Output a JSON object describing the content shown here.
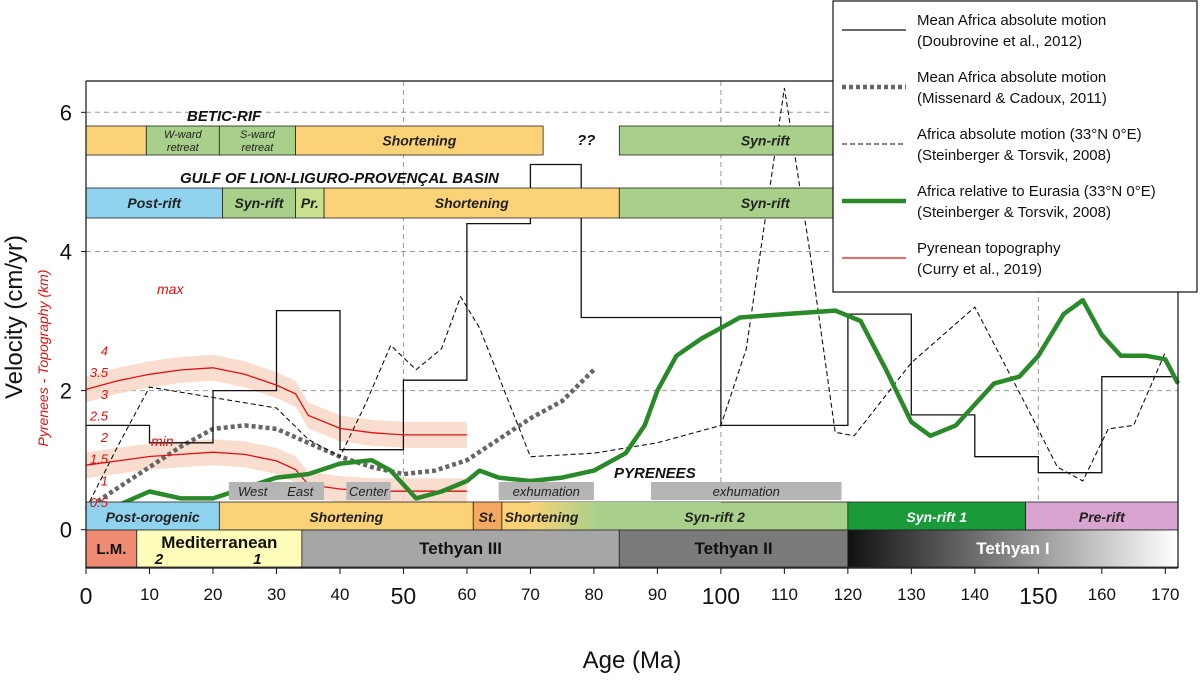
{
  "chart_data": {
    "type": "line",
    "xlabel": "Age (Ma)",
    "ylabel": "Velocity (cm/yr)",
    "ylabel2": "Pyrenees - Topography (km)",
    "xlim": [
      0,
      172
    ],
    "ylim": [
      -0.55,
      6.45
    ],
    "x_ticks": [
      0,
      10,
      20,
      30,
      40,
      50,
      60,
      70,
      80,
      90,
      100,
      110,
      120,
      130,
      140,
      150,
      160,
      170
    ],
    "y_ticks": [
      0,
      2,
      4,
      6
    ],
    "topo_ticks": [
      "0.5",
      "1",
      "1.5",
      "2",
      "2.5",
      "3",
      "3.5",
      "4"
    ],
    "grid_x": [
      50,
      100,
      150
    ],
    "grid_y": [
      2,
      4,
      6
    ],
    "annotations": {
      "max": "max",
      "min": "min",
      "question": "??",
      "betic_rif": "BETIC-RIF",
      "gulf": "GULF OF LION-LIGURO-PROVENÇAL BASIN",
      "pyrenees": "PYRENEES"
    },
    "series": [
      {
        "name": "Mean Africa absolute motion",
        "citation": "(Doubrovine et al., 2012)",
        "color": "#111111",
        "style": "step",
        "points": [
          [
            0,
            1.5
          ],
          [
            10,
            1.5
          ],
          [
            10,
            1.25
          ],
          [
            20,
            1.25
          ],
          [
            20,
            2.0
          ],
          [
            30,
            2.0
          ],
          [
            30,
            3.15
          ],
          [
            40,
            3.15
          ],
          [
            40,
            1.15
          ],
          [
            50,
            1.15
          ],
          [
            50,
            2.15
          ],
          [
            60,
            2.15
          ],
          [
            60,
            4.4
          ],
          [
            70,
            4.4
          ],
          [
            70,
            5.25
          ],
          [
            78,
            5.25
          ],
          [
            78,
            3.05
          ],
          [
            100,
            3.05
          ],
          [
            100,
            1.5
          ],
          [
            120,
            1.5
          ],
          [
            120,
            3.1
          ],
          [
            130,
            3.1
          ],
          [
            130,
            1.65
          ],
          [
            140,
            1.65
          ],
          [
            140,
            1.05
          ],
          [
            150,
            1.05
          ],
          [
            150,
            0.82
          ],
          [
            160,
            0.82
          ],
          [
            160,
            2.2
          ],
          [
            171,
            2.2
          ]
        ]
      },
      {
        "name": "Mean Africa absolute motion",
        "citation": "(Missenard & Cadoux, 2011)",
        "color": "#666666",
        "style": "dotted-thick",
        "points": [
          [
            0,
            0.3
          ],
          [
            5,
            0.6
          ],
          [
            10,
            0.9
          ],
          [
            15,
            1.2
          ],
          [
            20,
            1.45
          ],
          [
            25,
            1.5
          ],
          [
            30,
            1.45
          ],
          [
            35,
            1.25
          ],
          [
            40,
            1.05
          ],
          [
            45,
            0.9
          ],
          [
            50,
            0.8
          ],
          [
            55,
            0.85
          ],
          [
            60,
            1.0
          ],
          [
            65,
            1.3
          ],
          [
            70,
            1.6
          ],
          [
            75,
            1.85
          ],
          [
            80,
            2.3
          ]
        ]
      },
      {
        "name": "Africa absolute motion (33°N 0°E)",
        "citation": "(Steinberger & Torsvik, 2008)",
        "color": "#111111",
        "style": "dashed",
        "points": [
          [
            0,
            0.3
          ],
          [
            5,
            1.2
          ],
          [
            10,
            2.05
          ],
          [
            20,
            1.9
          ],
          [
            30,
            1.75
          ],
          [
            35,
            1.3
          ],
          [
            40,
            1.05
          ],
          [
            44,
            1.8
          ],
          [
            48,
            2.65
          ],
          [
            52,
            2.3
          ],
          [
            56,
            2.6
          ],
          [
            59,
            3.35
          ],
          [
            62,
            2.9
          ],
          [
            70,
            1.05
          ],
          [
            80,
            1.1
          ],
          [
            90,
            1.25
          ],
          [
            100,
            1.5
          ],
          [
            104,
            2.6
          ],
          [
            110,
            6.35
          ],
          [
            114,
            4.0
          ],
          [
            118,
            1.4
          ],
          [
            121,
            1.35
          ],
          [
            130,
            2.4
          ],
          [
            140,
            3.2
          ],
          [
            148,
            1.8
          ],
          [
            153,
            0.9
          ],
          [
            157,
            0.7
          ],
          [
            161,
            1.45
          ],
          [
            165,
            1.5
          ],
          [
            170,
            2.55
          ]
        ]
      },
      {
        "name": "Africa relative to Eurasia (33°N 0°E)",
        "citation": "(Steinberger & Torsvik, 2008)",
        "color": "#2a8a2a",
        "style": "thick",
        "points": [
          [
            0,
            0.25
          ],
          [
            5,
            0.35
          ],
          [
            10,
            0.55
          ],
          [
            15,
            0.45
          ],
          [
            20,
            0.45
          ],
          [
            25,
            0.6
          ],
          [
            30,
            0.75
          ],
          [
            35,
            0.8
          ],
          [
            40,
            0.95
          ],
          [
            45,
            1.0
          ],
          [
            48,
            0.85
          ],
          [
            52,
            0.45
          ],
          [
            56,
            0.55
          ],
          [
            60,
            0.7
          ],
          [
            62,
            0.85
          ],
          [
            65,
            0.75
          ],
          [
            70,
            0.7
          ],
          [
            75,
            0.75
          ],
          [
            80,
            0.85
          ],
          [
            85,
            1.1
          ],
          [
            88,
            1.5
          ],
          [
            90,
            2.0
          ],
          [
            93,
            2.5
          ],
          [
            97,
            2.75
          ],
          [
            100,
            2.9
          ],
          [
            103,
            3.05
          ],
          [
            110,
            3.1
          ],
          [
            118,
            3.15
          ],
          [
            122,
            3.0
          ],
          [
            126,
            2.3
          ],
          [
            130,
            1.55
          ],
          [
            133,
            1.35
          ],
          [
            137,
            1.5
          ],
          [
            140,
            1.8
          ],
          [
            143,
            2.1
          ],
          [
            147,
            2.2
          ],
          [
            150,
            2.5
          ],
          [
            154,
            3.1
          ],
          [
            157,
            3.3
          ],
          [
            160,
            2.8
          ],
          [
            163,
            2.5
          ],
          [
            167,
            2.5
          ],
          [
            170,
            2.45
          ],
          [
            172,
            2.1
          ]
        ]
      },
      {
        "name": "Pyrenean topography",
        "citation": "(Curry et al., 2019)",
        "color": "#e01010",
        "style": "thin",
        "max_points": [
          [
            0,
            3.1
          ],
          [
            5,
            3.3
          ],
          [
            10,
            3.45
          ],
          [
            15,
            3.55
          ],
          [
            20,
            3.6
          ],
          [
            25,
            3.45
          ],
          [
            30,
            3.2
          ],
          [
            33,
            3.0
          ],
          [
            35,
            2.5
          ],
          [
            40,
            2.2
          ],
          [
            45,
            2.1
          ],
          [
            50,
            2.05
          ],
          [
            55,
            2.05
          ],
          [
            60,
            2.05
          ]
        ],
        "min_points": [
          [
            0,
            1.35
          ],
          [
            5,
            1.45
          ],
          [
            10,
            1.55
          ],
          [
            15,
            1.6
          ],
          [
            20,
            1.65
          ],
          [
            25,
            1.6
          ],
          [
            30,
            1.45
          ],
          [
            33,
            1.25
          ],
          [
            35,
            0.9
          ],
          [
            40,
            0.8
          ],
          [
            45,
            0.75
          ],
          [
            50,
            0.75
          ],
          [
            55,
            0.75
          ],
          [
            60,
            0.75
          ]
        ],
        "band_color": "#f7d6c4"
      }
    ]
  },
  "timeline": {
    "betic_rows": [
      {
        "label": "",
        "start": 0,
        "end": 9.5,
        "color": "#fbd278"
      },
      {
        "label": "W-ward retreat",
        "start": 9.5,
        "end": 21,
        "color": "#a8d08a"
      },
      {
        "label": "S-ward retreat",
        "start": 21,
        "end": 33,
        "color": "#a8d08a"
      },
      {
        "label": "Shortening",
        "start": 33,
        "end": 72,
        "color": "#fbd278"
      },
      {
        "label": "Syn-rift",
        "start": 84,
        "end": 130,
        "color": "#a8d08a"
      }
    ],
    "gulf_rows": [
      {
        "label": "Post-rift",
        "start": 0,
        "end": 21.5,
        "color": "#8fd3ef"
      },
      {
        "label": "Syn-rift",
        "start": 21.5,
        "end": 33,
        "color": "#a8d08a"
      },
      {
        "label": "Pr.",
        "start": 33,
        "end": 37.5,
        "color": "#c9e08f"
      },
      {
        "label": "Shortening",
        "start": 37.5,
        "end": 84,
        "color": "#fbd278"
      },
      {
        "label": "Syn-rift",
        "start": 84,
        "end": 130,
        "color": "#a8d08a"
      }
    ],
    "pyrenees_tags": [
      {
        "label": "West",
        "start": 22.5,
        "end": 30
      },
      {
        "label": "East",
        "start": 30,
        "end": 37.5
      },
      {
        "label": "Center",
        "start": 41,
        "end": 48
      },
      {
        "label": "exhumation",
        "start": 65,
        "end": 80
      },
      {
        "label": "exhumation",
        "start": 89,
        "end": 119
      }
    ],
    "pyrenees_rows": [
      {
        "label": "Post-orogenic",
        "start": 0,
        "end": 21,
        "color": "#8fd3ef"
      },
      {
        "label": "Shortening",
        "start": 21,
        "end": 61,
        "color": "#fbd278"
      },
      {
        "label": "St.",
        "start": 61,
        "end": 65.5,
        "color": "#f3a960"
      },
      {
        "label": "Shortening",
        "start": 65.5,
        "end": 78,
        "color": "#fbd278"
      },
      {
        "label": "Syn-rift 2",
        "start": 78,
        "end": 120,
        "color": "#a8d08a"
      },
      {
        "label": "Syn-rift 1",
        "start": 120,
        "end": 148,
        "color": "#1b9a3a"
      },
      {
        "label": "Pre-rift",
        "start": 148,
        "end": 172,
        "color": "#d8a4d0"
      }
    ],
    "med_rows": [
      {
        "label": "L.M.",
        "start": 0,
        "end": 8,
        "color": "#ef8a73"
      },
      {
        "label": "Mediterranean",
        "start": 8,
        "end": 34,
        "color": "#fdfcb8"
      },
      {
        "label": "Tethyan III",
        "start": 34,
        "end": 84,
        "color": "#a6a6a6"
      },
      {
        "label": "Tethyan II",
        "start": 84,
        "end": 120,
        "color": "#7a7a7a"
      },
      {
        "label": "Tethyan I",
        "start": 120,
        "end": 172,
        "color": "#333333"
      }
    ],
    "med_sublabels": [
      {
        "label": "2",
        "at": 11.5
      },
      {
        "label": "1",
        "at": 27
      }
    ]
  }
}
